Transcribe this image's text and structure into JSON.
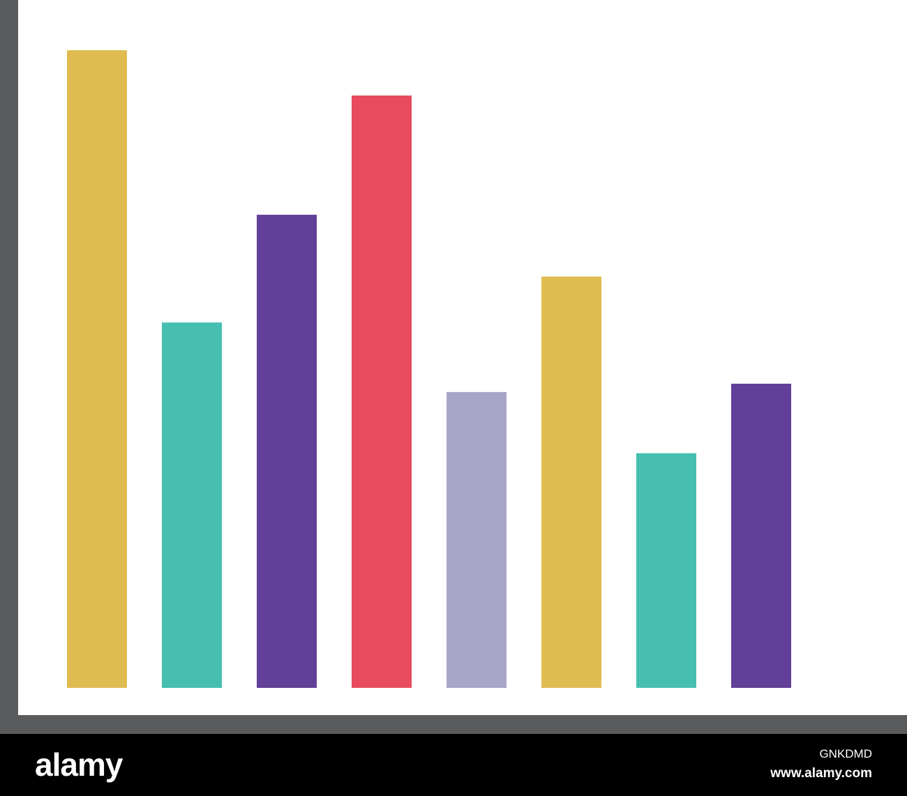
{
  "chart_data": {
    "type": "bar",
    "title": "",
    "xlabel": "",
    "ylabel": "",
    "categories": [
      "",
      "",
      "",
      "",
      "",
      "",
      "",
      ""
    ],
    "values": [
      100,
      57.3,
      74.2,
      92.9,
      46.4,
      64.5,
      36.8,
      47.7
    ],
    "bar_colors": [
      "#E0BB50",
      "#46BFB0",
      "#623F98",
      "#E84B5D",
      "#A9A5C8",
      "#E0BB50",
      "#46BFB0",
      "#623F98"
    ],
    "ylim": [
      0,
      100
    ],
    "grid": false,
    "legend": "none",
    "axis_color": "#5A5B5D"
  },
  "footer": {
    "brand": "alamy",
    "image_id": "GNKDMD",
    "url": "www.alamy.com"
  }
}
